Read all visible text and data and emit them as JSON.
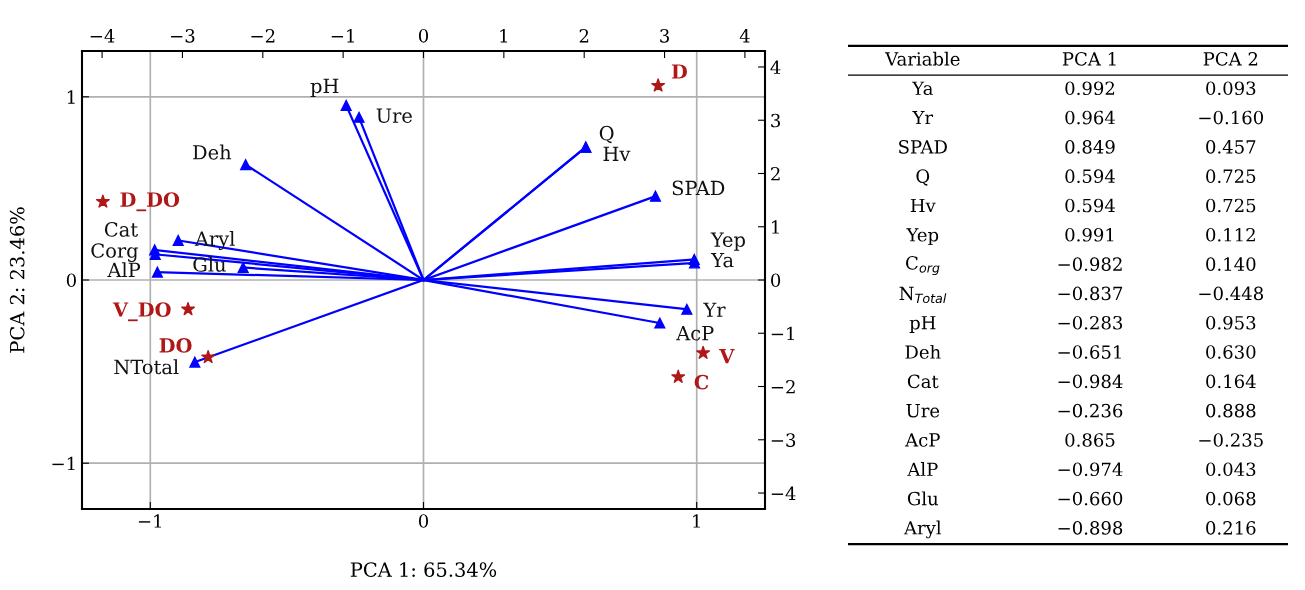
{
  "chart_data": [
    {
      "type": "scatter",
      "xlabel": "PCA 1: 65.34%",
      "ylabel": "PCA 2: 23.46%",
      "xlim": [
        -1.25,
        1.25
      ],
      "xticks": [
        {
          "value": -1,
          "label": "−1"
        },
        0,
        1
      ],
      "ylim": [
        -1.25,
        1.25
      ],
      "yticks": [
        {
          "value": -1,
          "label": "−1"
        },
        0,
        1
      ],
      "grid": true,
      "series": [
        {
          "type": "lollipop",
          "color": "#0000ff",
          "marker": "triangle",
          "x": [
            0.992,
            0.964,
            0.849,
            0.594,
            0.594,
            0.991,
            -0.982,
            -0.837,
            -0.283,
            -0.651,
            -0.984,
            -0.236,
            0.865,
            -0.974,
            -0.66,
            -0.898
          ],
          "values": [
            0.093,
            -0.16,
            0.457,
            0.725,
            0.725,
            0.112,
            0.14,
            -0.448,
            0.953,
            0.63,
            0.164,
            0.888,
            -0.235,
            0.043,
            0.068,
            0.216
          ],
          "value_labels": [
            "Ya",
            "Yr",
            "SPAD",
            "Q",
            "Hv",
            "Yep",
            "Corg",
            "NTotal",
            "pH",
            "Deh",
            "Cat",
            "Ure",
            "AcP",
            "AlP",
            "Glu",
            "Aryl"
          ]
        }
      ]
    },
    {
      "type": "scatter",
      "xlim": [
        -4.25,
        4.25
      ],
      "xticks": [
        {
          "value": -4,
          "label": "−4"
        },
        {
          "value": -3,
          "label": "−3"
        },
        {
          "value": -2,
          "label": "−2"
        },
        {
          "value": -1,
          "label": "−1"
        },
        0,
        1,
        2,
        3,
        4
      ],
      "ylim": [
        -4.3,
        4.3
      ],
      "yticks": [
        {
          "value": -4,
          "label": "−4"
        },
        {
          "value": -3,
          "label": "−3"
        },
        {
          "value": -2,
          "label": "−2"
        },
        {
          "value": -1,
          "label": "−1"
        },
        0,
        1,
        2,
        3,
        4
      ],
      "series": [
        {
          "type": "scatter",
          "color": "#b01818",
          "marker": "star",
          "x": [
            2.92,
            -3.99,
            -2.93,
            -2.68,
            3.48,
            3.17
          ],
          "values": [
            3.65,
            1.47,
            -0.55,
            -1.45,
            -1.37,
            -1.82
          ],
          "value_labels": [
            "D",
            "D_DO",
            "V_DO",
            "DO",
            "V",
            "C"
          ]
        }
      ]
    },
    {
      "type": "other",
      "legend_title": "Variable",
      "categories": [
        "Ya",
        "Yr",
        "SPAD",
        "Q",
        "Hv",
        "Yep",
        "C$_{org}$",
        "N$_{Total}$",
        "pH",
        "Deh",
        "Cat",
        "Ure",
        "AcP",
        "AlP",
        "Glu",
        "Aryl"
      ],
      "series": [
        {
          "name": "PCA 1",
          "values": [
            0.992,
            0.964,
            0.849,
            0.594,
            0.594,
            0.991,
            -0.982,
            -0.837,
            -0.283,
            -0.651,
            -0.984,
            -0.236,
            0.865,
            -0.974,
            -0.66,
            -0.898
          ],
          "value_labels": [
            "0.992",
            "0.964",
            "0.849",
            "0.594",
            "0.594",
            "0.991",
            "−0.982",
            "−0.837",
            "−0.283",
            "−0.651",
            "−0.984",
            "−0.236",
            "0.865",
            "−0.974",
            "−0.660",
            "−0.898"
          ]
        },
        {
          "name": "PCA 2",
          "values": [
            0.093,
            -0.16,
            0.457,
            0.725,
            0.725,
            0.112,
            0.14,
            -0.448,
            0.953,
            0.63,
            0.164,
            0.888,
            -0.235,
            0.043,
            0.068,
            0.216
          ],
          "value_labels": [
            "0.093",
            "−0.160",
            "0.457",
            "0.725",
            "0.725",
            "0.112",
            "0.140",
            "−0.448",
            "0.953",
            "0.630",
            "0.164",
            "0.888",
            "−0.235",
            "0.043",
            "0.068",
            "0.216"
          ]
        }
      ]
    }
  ]
}
